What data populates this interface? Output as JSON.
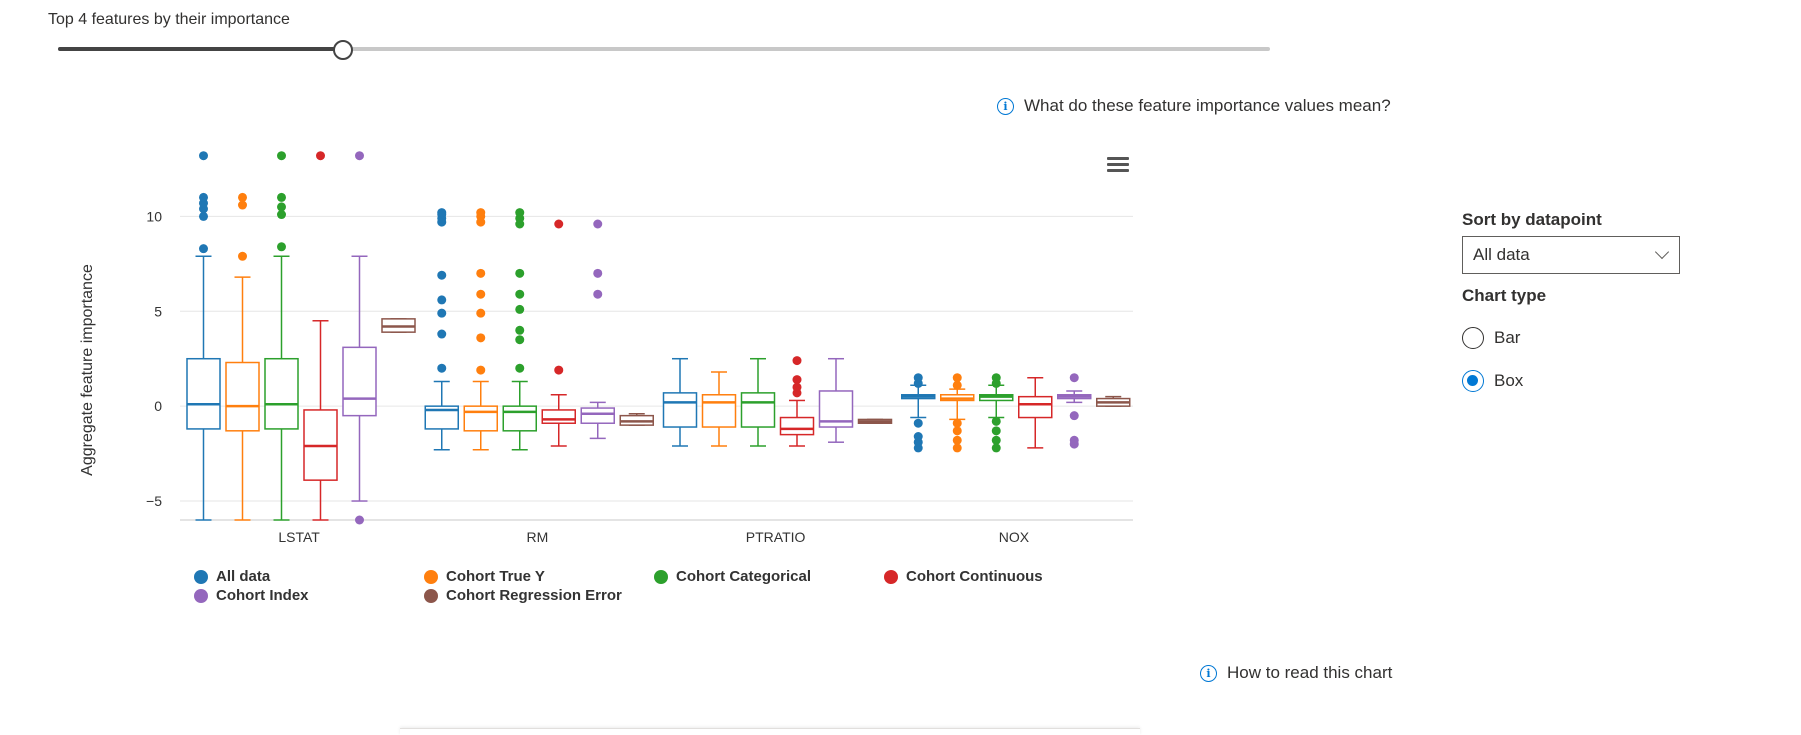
{
  "slider": {
    "label": "Top 4 features by their importance",
    "value": 4,
    "max": 17
  },
  "info_links": {
    "feature_importance": "What do these feature importance values mean?",
    "read_chart": "How to read this chart"
  },
  "icons": {
    "info": "info-icon",
    "menu": "hamburger-menu-icon",
    "dropdown": "chevron-down-icon"
  },
  "sort": {
    "label": "Sort by datapoint",
    "selected": "All data"
  },
  "chart_type": {
    "label": "Chart type",
    "options": [
      {
        "label": "Bar",
        "checked": false
      },
      {
        "label": "Box",
        "checked": true
      }
    ]
  },
  "chart_data": {
    "type": "box",
    "title": "",
    "xlabel": "",
    "ylabel": "Aggregate feature importance",
    "ylim": [
      -6,
      13.5
    ],
    "yticks": [
      -5,
      0,
      5,
      10
    ],
    "grid": true,
    "categories": [
      "LSTAT",
      "RM",
      "PTRATIO",
      "NOX"
    ],
    "series": [
      {
        "name": "All data",
        "color": "#1f77b4",
        "boxes": [
          {
            "q1": -1.2,
            "median": 0.1,
            "q3": 2.5,
            "low": -6.0,
            "high": 7.9,
            "outliers": [
              8.3,
              10.0,
              10.4,
              10.7,
              11.0,
              13.2
            ]
          },
          {
            "q1": -1.2,
            "median": -0.2,
            "q3": 0.0,
            "low": -2.3,
            "high": 1.3,
            "outliers": [
              2.0,
              3.8,
              4.9,
              5.6,
              6.9,
              9.7,
              9.9,
              10.1,
              10.2
            ]
          },
          {
            "q1": -1.1,
            "median": 0.2,
            "q3": 0.7,
            "low": -2.1,
            "high": 2.5,
            "outliers": []
          },
          {
            "q1": 0.4,
            "median": 0.5,
            "q3": 0.6,
            "low": -0.6,
            "high": 1.1,
            "outliers": [
              -2.2,
              -1.9,
              -1.6,
              -0.9,
              1.2,
              1.5
            ]
          }
        ]
      },
      {
        "name": "Cohort True Y",
        "color": "#ff7f0e",
        "boxes": [
          {
            "q1": -1.3,
            "median": 0.0,
            "q3": 2.3,
            "low": -6.0,
            "high": 6.8,
            "outliers": [
              7.9,
              10.6,
              11.0
            ]
          },
          {
            "q1": -1.3,
            "median": -0.3,
            "q3": 0.0,
            "low": -2.3,
            "high": 1.3,
            "outliers": [
              1.9,
              3.6,
              4.9,
              5.9,
              7.0,
              9.7,
              10.0,
              10.2
            ]
          },
          {
            "q1": -1.1,
            "median": 0.2,
            "q3": 0.6,
            "low": -2.1,
            "high": 1.8,
            "outliers": []
          },
          {
            "q1": 0.3,
            "median": 0.4,
            "q3": 0.6,
            "low": -0.7,
            "high": 0.9,
            "outliers": [
              -2.2,
              -1.8,
              -1.3,
              -0.9,
              1.1,
              1.5
            ]
          }
        ]
      },
      {
        "name": "Cohort Categorical",
        "color": "#2ca02c",
        "boxes": [
          {
            "q1": -1.2,
            "median": 0.1,
            "q3": 2.5,
            "low": -6.0,
            "high": 7.9,
            "outliers": [
              8.4,
              10.1,
              10.5,
              11.0,
              13.2
            ]
          },
          {
            "q1": -1.3,
            "median": -0.3,
            "q3": 0.0,
            "low": -2.3,
            "high": 1.3,
            "outliers": [
              2.0,
              3.5,
              4.0,
              5.1,
              5.9,
              7.0,
              9.6,
              9.9,
              10.2
            ]
          },
          {
            "q1": -1.1,
            "median": 0.2,
            "q3": 0.7,
            "low": -2.1,
            "high": 2.5,
            "outliers": []
          },
          {
            "q1": 0.3,
            "median": 0.5,
            "q3": 0.6,
            "low": -0.6,
            "high": 1.1,
            "outliers": [
              -2.2,
              -1.8,
              -1.3,
              -0.8,
              1.2,
              1.5
            ]
          }
        ]
      },
      {
        "name": "Cohort Continuous",
        "color": "#d62728",
        "boxes": [
          {
            "q1": -3.9,
            "median": -2.1,
            "q3": -0.2,
            "low": -6.0,
            "high": 4.5,
            "outliers": [
              13.2
            ]
          },
          {
            "q1": -0.9,
            "median": -0.7,
            "q3": -0.2,
            "low": -2.1,
            "high": 0.6,
            "outliers": [
              1.9,
              9.6
            ]
          },
          {
            "q1": -1.5,
            "median": -1.2,
            "q3": -0.6,
            "low": -2.1,
            "high": 0.3,
            "outliers": [
              0.7,
              1.0,
              1.4,
              2.4
            ]
          },
          {
            "q1": -0.6,
            "median": 0.1,
            "q3": 0.5,
            "low": -2.2,
            "high": 1.5,
            "outliers": []
          }
        ]
      },
      {
        "name": "Cohort Index",
        "color": "#9467bd",
        "boxes": [
          {
            "q1": -0.5,
            "median": 0.4,
            "q3": 3.1,
            "low": -5.0,
            "high": 7.9,
            "outliers": [
              -6.0,
              13.2
            ]
          },
          {
            "q1": -0.9,
            "median": -0.4,
            "q3": -0.1,
            "low": -1.7,
            "high": 0.2,
            "outliers": [
              5.9,
              7.0,
              9.6
            ]
          },
          {
            "q1": -1.1,
            "median": -0.8,
            "q3": 0.8,
            "low": -1.9,
            "high": 2.5,
            "outliers": []
          },
          {
            "q1": 0.4,
            "median": 0.5,
            "q3": 0.6,
            "low": 0.2,
            "high": 0.8,
            "outliers": [
              -2.0,
              -1.8,
              -0.5,
              1.5
            ]
          }
        ]
      },
      {
        "name": "Cohort Regression Error",
        "color": "#8c564b",
        "boxes": [
          {
            "q1": 3.9,
            "median": 4.2,
            "q3": 4.6,
            "low": 3.9,
            "high": 4.6,
            "outliers": []
          },
          {
            "q1": -1.0,
            "median": -0.8,
            "q3": -0.5,
            "low": -1.0,
            "high": -0.4,
            "outliers": []
          },
          {
            "q1": -0.9,
            "median": -0.8,
            "q3": -0.7,
            "low": -0.9,
            "high": -0.7,
            "outliers": []
          },
          {
            "q1": 0.0,
            "median": 0.2,
            "q3": 0.4,
            "low": 0.0,
            "high": 0.5,
            "outliers": []
          }
        ]
      }
    ]
  }
}
